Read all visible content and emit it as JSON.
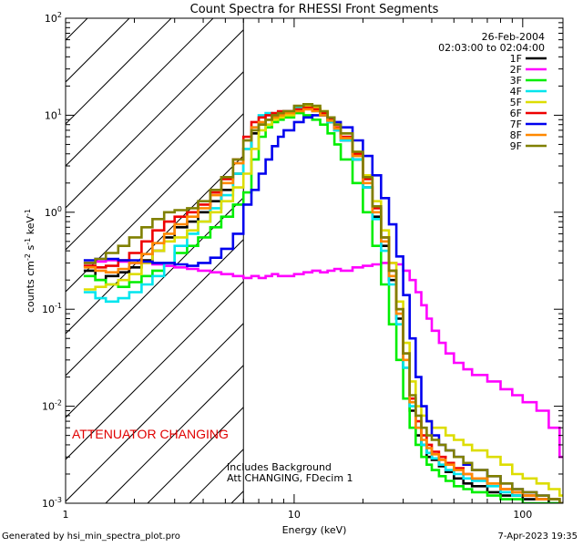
{
  "chart_data": {
    "type": "line",
    "title": "Count Spectra for RHESSI Front Segments",
    "xlabel": "Energy (keV)",
    "ylabel_main": "counts cm",
    "ylabel_sup1": "-2",
    "ylabel_mid": " s",
    "ylabel_sup2": "-1",
    "ylabel_end": " keV",
    "ylabel_sup3": "-1",
    "x_scale": "log",
    "y_scale": "log",
    "xlim": [
      1,
      150
    ],
    "ylim": [
      0.001,
      100
    ],
    "x_ticks": [
      {
        "value": 1,
        "label": "1"
      },
      {
        "value": 10,
        "label": "10"
      },
      {
        "value": 100,
        "label": "100"
      }
    ],
    "y_ticks": [
      {
        "value": 0.001,
        "base": "10",
        "exp": "-3"
      },
      {
        "value": 0.01,
        "base": "10",
        "exp": "-2"
      },
      {
        "value": 0.1,
        "base": "10",
        "exp": "-1"
      },
      {
        "value": 1,
        "base": "10",
        "exp": "0"
      },
      {
        "value": 10,
        "base": "10",
        "exp": "1"
      },
      {
        "value": 100,
        "base": "10",
        "exp": "2"
      }
    ],
    "date": "26-Feb-2004",
    "time_range": "02:03:00 to 02:04:00",
    "attenuator_text": "ATTENUATOR CHANGING",
    "attenuator_color": "#e00000",
    "hatch_range_kev": [
      1,
      6
    ],
    "note_line1": "Includes Background",
    "note_line2": "Att CHANGING, FDecim 1",
    "series": [
      {
        "name": "1F",
        "color": "#000000",
        "x": [
          1.2,
          1.35,
          1.5,
          1.7,
          1.9,
          2.15,
          2.4,
          2.7,
          3.0,
          3.4,
          3.8,
          4.3,
          4.8,
          5.4,
          6.0,
          6.5,
          7.0,
          7.5,
          8.0,
          8.5,
          9.0,
          10,
          11,
          12,
          13,
          14,
          15,
          16,
          18,
          20,
          22,
          24,
          26,
          28,
          30,
          32,
          34,
          36,
          38,
          40,
          43,
          46,
          50,
          55,
          60,
          70,
          80,
          90,
          100,
          115,
          130,
          145
        ],
        "y": [
          0.25,
          0.2,
          0.22,
          0.24,
          0.27,
          0.32,
          0.4,
          0.55,
          0.7,
          0.8,
          1.0,
          1.3,
          1.7,
          2.5,
          4.5,
          6.5,
          8.0,
          9.0,
          10,
          10.5,
          11,
          12,
          12.5,
          11.5,
          10,
          8.5,
          7,
          5.5,
          3.5,
          1.8,
          0.9,
          0.45,
          0.2,
          0.08,
          0.025,
          0.009,
          0.005,
          0.004,
          0.003,
          0.0028,
          0.0024,
          0.0021,
          0.0018,
          0.0016,
          0.0015,
          0.0013,
          0.0012,
          0.0012,
          0.0011,
          0.0011,
          0.001,
          0.001
        ]
      },
      {
        "name": "2F",
        "color": "#ff00ff",
        "x": [
          1.2,
          1.35,
          1.5,
          1.7,
          1.9,
          2.15,
          2.4,
          2.7,
          3.0,
          3.4,
          3.8,
          4.3,
          4.8,
          5.4,
          6.0,
          6.5,
          7.0,
          7.5,
          8.0,
          8.5,
          9.0,
          10,
          11,
          12,
          13,
          14,
          15,
          16,
          18,
          20,
          22,
          24,
          26,
          28,
          30,
          32,
          34,
          36,
          38,
          40,
          43,
          46,
          50,
          55,
          60,
          70,
          80,
          90,
          100,
          115,
          130,
          145
        ],
        "y": [
          0.3,
          0.31,
          0.32,
          0.31,
          0.3,
          0.3,
          0.29,
          0.28,
          0.27,
          0.26,
          0.25,
          0.24,
          0.23,
          0.22,
          0.21,
          0.22,
          0.21,
          0.22,
          0.23,
          0.22,
          0.22,
          0.23,
          0.24,
          0.25,
          0.24,
          0.25,
          0.26,
          0.25,
          0.27,
          0.28,
          0.29,
          0.3,
          0.3,
          0.29,
          0.25,
          0.2,
          0.15,
          0.11,
          0.08,
          0.06,
          0.045,
          0.035,
          0.028,
          0.024,
          0.021,
          0.018,
          0.015,
          0.013,
          0.011,
          0.009,
          0.006,
          0.003
        ]
      },
      {
        "name": "3F",
        "color": "#00ee00",
        "x": [
          1.2,
          1.35,
          1.5,
          1.7,
          1.9,
          2.15,
          2.4,
          2.7,
          3.0,
          3.4,
          3.8,
          4.3,
          4.8,
          5.4,
          6.0,
          6.5,
          7.0,
          7.5,
          8.0,
          8.5,
          9.0,
          10,
          11,
          12,
          13,
          14,
          15,
          16,
          18,
          20,
          22,
          24,
          26,
          28,
          30,
          32,
          34,
          36,
          38,
          40,
          43,
          46,
          50,
          55,
          60,
          70,
          80,
          90,
          100,
          115,
          130,
          145
        ],
        "y": [
          0.22,
          0.2,
          0.18,
          0.17,
          0.19,
          0.22,
          0.25,
          0.3,
          0.38,
          0.45,
          0.55,
          0.7,
          0.9,
          1.2,
          1.6,
          3.5,
          6.0,
          7.5,
          8.5,
          9.0,
          9.5,
          10.5,
          10,
          9,
          8,
          6.5,
          5.0,
          3.5,
          2.0,
          1.0,
          0.45,
          0.18,
          0.07,
          0.03,
          0.012,
          0.006,
          0.004,
          0.003,
          0.0025,
          0.0022,
          0.0019,
          0.0017,
          0.0015,
          0.0014,
          0.0013,
          0.0012,
          0.0011,
          0.0011,
          0.001,
          0.001,
          0.001,
          0.001
        ]
      },
      {
        "name": "4F",
        "color": "#00e5ee",
        "x": [
          1.2,
          1.35,
          1.5,
          1.7,
          1.9,
          2.15,
          2.4,
          2.7,
          3.0,
          3.4,
          3.8,
          4.3,
          4.8,
          5.4,
          6.0,
          6.5,
          7.0,
          7.5,
          8.0,
          8.5,
          9.0,
          10,
          11,
          12,
          13,
          14,
          15,
          16,
          18,
          20,
          22,
          24,
          26,
          28,
          30,
          32,
          34,
          36,
          38,
          40,
          43,
          46,
          50,
          55,
          60,
          70,
          80,
          90,
          100,
          115,
          130,
          145
        ],
        "y": [
          0.15,
          0.13,
          0.12,
          0.13,
          0.15,
          0.18,
          0.22,
          0.3,
          0.45,
          0.6,
          0.8,
          1.1,
          1.5,
          2.5,
          4.5,
          7.5,
          10,
          10.5,
          10,
          10.5,
          11,
          12,
          12,
          11,
          10,
          8.5,
          7,
          5.5,
          3.5,
          1.8,
          0.85,
          0.4,
          0.18,
          0.07,
          0.025,
          0.01,
          0.006,
          0.004,
          0.0033,
          0.0029,
          0.0025,
          0.0022,
          0.002,
          0.0018,
          0.0017,
          0.0015,
          0.0013,
          0.0012,
          0.0012,
          0.0011,
          0.0011,
          0.001
        ]
      },
      {
        "name": "5F",
        "color": "#dddd00",
        "x": [
          1.2,
          1.35,
          1.5,
          1.7,
          1.9,
          2.15,
          2.4,
          2.7,
          3.0,
          3.4,
          3.8,
          4.3,
          4.8,
          5.4,
          6.0,
          6.5,
          7.0,
          7.5,
          8.0,
          8.5,
          9.0,
          10,
          11,
          12,
          13,
          14,
          15,
          16,
          18,
          20,
          22,
          24,
          26,
          28,
          30,
          32,
          34,
          36,
          38,
          40,
          43,
          46,
          50,
          55,
          60,
          70,
          80,
          90,
          100,
          115,
          130,
          145
        ],
        "y": [
          0.16,
          0.17,
          0.18,
          0.2,
          0.23,
          0.3,
          0.4,
          0.5,
          0.55,
          0.65,
          0.8,
          1.0,
          1.3,
          1.8,
          2.5,
          4.5,
          7.0,
          8.0,
          9.0,
          9.5,
          10,
          11.5,
          12.5,
          12,
          11,
          9.5,
          8,
          6.5,
          4.2,
          2.4,
          1.3,
          0.65,
          0.3,
          0.12,
          0.045,
          0.018,
          0.01,
          0.008,
          0.007,
          0.006,
          0.006,
          0.005,
          0.0045,
          0.004,
          0.0035,
          0.003,
          0.0025,
          0.002,
          0.0018,
          0.0016,
          0.0014,
          0.0012
        ]
      },
      {
        "name": "6F",
        "color": "#ee0000",
        "x": [
          1.2,
          1.35,
          1.5,
          1.7,
          1.9,
          2.15,
          2.4,
          2.7,
          3.0,
          3.4,
          3.8,
          4.3,
          4.8,
          5.4,
          6.0,
          6.5,
          7.0,
          7.5,
          8.0,
          8.5,
          9.0,
          10,
          11,
          12,
          13,
          14,
          15,
          16,
          18,
          20,
          22,
          24,
          26,
          28,
          30,
          32,
          34,
          36,
          38,
          40,
          43,
          46,
          50,
          55,
          60,
          70,
          80,
          90,
          100,
          115,
          130,
          145
        ],
        "y": [
          0.28,
          0.27,
          0.28,
          0.32,
          0.38,
          0.5,
          0.65,
          0.8,
          0.9,
          1.0,
          1.2,
          1.6,
          2.2,
          3.5,
          6.0,
          8.5,
          9.5,
          10,
          10.5,
          11,
          11,
          11.5,
          12,
          11.5,
          10.5,
          9,
          7.5,
          6,
          4,
          2.2,
          1.1,
          0.55,
          0.25,
          0.1,
          0.035,
          0.012,
          0.007,
          0.005,
          0.004,
          0.0034,
          0.003,
          0.0026,
          0.0023,
          0.002,
          0.0018,
          0.0016,
          0.0014,
          0.0013,
          0.0012,
          0.0011,
          0.0011,
          0.001
        ]
      },
      {
        "name": "7F",
        "color": "#0000ee",
        "x": [
          1.2,
          1.35,
          1.5,
          1.7,
          1.9,
          2.15,
          2.4,
          2.7,
          3.0,
          3.4,
          3.8,
          4.3,
          4.8,
          5.4,
          6.0,
          6.5,
          7.0,
          7.5,
          8.0,
          8.5,
          9.0,
          10,
          11,
          12,
          13,
          14,
          15,
          16,
          18,
          20,
          22,
          24,
          26,
          28,
          30,
          32,
          34,
          36,
          38,
          40,
          43,
          46,
          50,
          55,
          60,
          70,
          80,
          90,
          100,
          115,
          130,
          145
        ],
        "y": [
          0.32,
          0.33,
          0.33,
          0.32,
          0.32,
          0.31,
          0.3,
          0.3,
          0.29,
          0.28,
          0.3,
          0.34,
          0.42,
          0.6,
          1.2,
          1.7,
          2.5,
          3.5,
          4.8,
          6.0,
          7.0,
          8.5,
          9.5,
          10,
          10,
          9.5,
          8.5,
          7.5,
          5.5,
          3.8,
          2.4,
          1.4,
          0.75,
          0.35,
          0.14,
          0.05,
          0.02,
          0.01,
          0.007,
          0.005,
          0.004,
          0.0035,
          0.003,
          0.0025,
          0.0022,
          0.0019,
          0.0016,
          0.0014,
          0.0013,
          0.0012,
          0.0011,
          0.001
        ]
      },
      {
        "name": "8F",
        "color": "#ff8800",
        "x": [
          1.2,
          1.35,
          1.5,
          1.7,
          1.9,
          2.15,
          2.4,
          2.7,
          3.0,
          3.4,
          3.8,
          4.3,
          4.8,
          5.4,
          6.0,
          6.5,
          7.0,
          7.5,
          8.0,
          8.5,
          9.0,
          10,
          11,
          12,
          13,
          14,
          15,
          16,
          18,
          20,
          22,
          24,
          26,
          28,
          30,
          32,
          34,
          36,
          38,
          40,
          43,
          46,
          50,
          55,
          60,
          70,
          80,
          90,
          100,
          115,
          130,
          145
        ],
        "y": [
          0.27,
          0.25,
          0.24,
          0.26,
          0.3,
          0.37,
          0.48,
          0.6,
          0.75,
          0.9,
          1.1,
          1.5,
          2.0,
          3.2,
          5.5,
          7.5,
          8.5,
          9.0,
          9.5,
          10,
          10.5,
          11,
          11.5,
          11,
          10,
          8.8,
          7.3,
          5.8,
          3.8,
          2.0,
          1.0,
          0.5,
          0.22,
          0.09,
          0.03,
          0.011,
          0.006,
          0.0045,
          0.0037,
          0.0032,
          0.0028,
          0.0025,
          0.0022,
          0.002,
          0.0018,
          0.0016,
          0.0014,
          0.0013,
          0.0012,
          0.0011,
          0.0011,
          0.001
        ]
      },
      {
        "name": "9F",
        "color": "#808000",
        "x": [
          1.2,
          1.35,
          1.5,
          1.7,
          1.9,
          2.15,
          2.4,
          2.7,
          3.0,
          3.4,
          3.8,
          4.3,
          4.8,
          5.4,
          6.0,
          6.5,
          7.0,
          7.5,
          8.0,
          8.5,
          9.0,
          10,
          11,
          12,
          13,
          14,
          15,
          16,
          18,
          20,
          22,
          24,
          26,
          28,
          30,
          32,
          34,
          36,
          38,
          40,
          43,
          46,
          50,
          55,
          60,
          70,
          80,
          90,
          100,
          115,
          130,
          145
        ],
        "y": [
          0.3,
          0.33,
          0.38,
          0.45,
          0.55,
          0.7,
          0.85,
          1.0,
          1.05,
          1.1,
          1.3,
          1.7,
          2.3,
          3.5,
          5.5,
          7.0,
          8.0,
          9.0,
          10,
          10.5,
          11,
          12.5,
          13,
          12.5,
          11,
          9.5,
          8,
          6.5,
          4.2,
          2.3,
          1.15,
          0.55,
          0.25,
          0.1,
          0.035,
          0.013,
          0.008,
          0.006,
          0.005,
          0.0045,
          0.004,
          0.0035,
          0.003,
          0.0026,
          0.0022,
          0.0019,
          0.0016,
          0.0014,
          0.0013,
          0.0012,
          0.0011,
          0.001
        ]
      }
    ]
  },
  "footer": {
    "left": "Generated by hsi_min_spectra_plot.pro",
    "right": "7-Apr-2023 19:35"
  }
}
